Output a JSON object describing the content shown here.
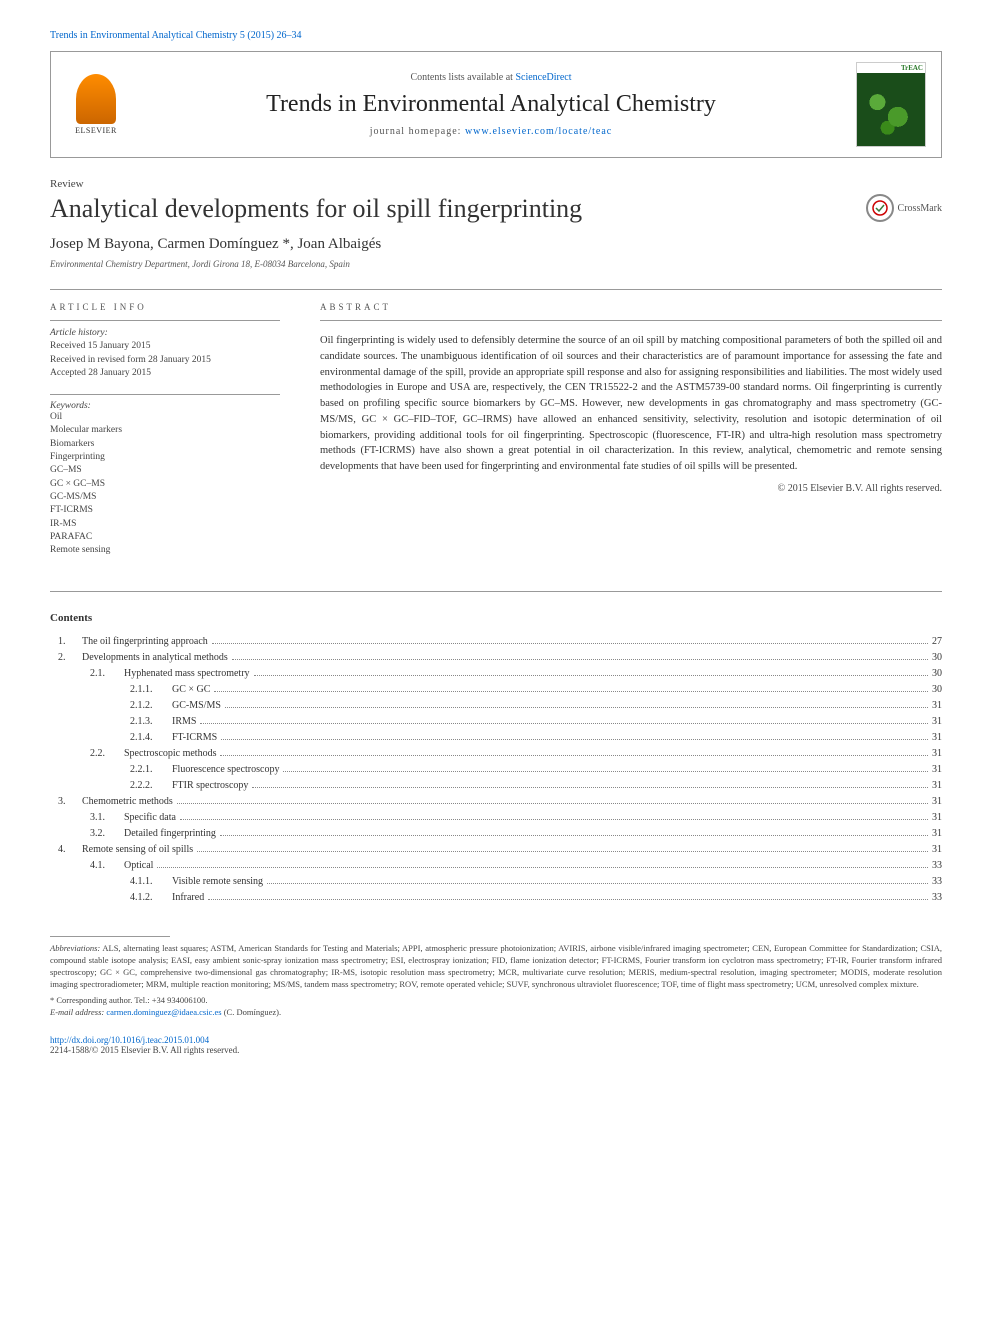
{
  "topLink": {
    "journal": "Trends in Environmental Analytical Chemistry",
    "volume": "5 (2015) 26–34"
  },
  "header": {
    "contentsPrefix": "Contents lists available at",
    "contentsLink": "ScienceDirect",
    "journalName": "Trends in Environmental Analytical Chemistry",
    "homepagePrefix": "journal homepage:",
    "homepageUrl": "www.elsevier.com/locate/teac",
    "elsevier": "ELSEVIER",
    "coverLabel": "TrEAC"
  },
  "article": {
    "type": "Review",
    "title": "Analytical developments for oil spill fingerprinting",
    "crossmark": "CrossMark",
    "authors": "Josep M Bayona, Carmen Domínguez *, Joan Albaigés",
    "affiliation": "Environmental Chemistry Department, Jordi Girona 18, E-08034 Barcelona, Spain"
  },
  "articleInfo": {
    "label": "ARTICLE INFO",
    "historyLabel": "Article history:",
    "received": "Received 15 January 2015",
    "revisedReceived": "Received in revised form 28 January 2015",
    "accepted": "Accepted 28 January 2015",
    "keywordsLabel": "Keywords:",
    "keywords": [
      "Oil",
      "Molecular markers",
      "Biomarkers",
      "Fingerprinting",
      "GC–MS",
      "GC × GC–MS",
      "GC-MS/MS",
      "FT-ICRMS",
      "IR-MS",
      "PARAFAC",
      "Remote sensing"
    ]
  },
  "abstract": {
    "label": "ABSTRACT",
    "text": "Oil fingerprinting is widely used to defensibly determine the source of an oil spill by matching compositional parameters of both the spilled oil and candidate sources. The unambiguous identification of oil sources and their characteristics are of paramount importance for assessing the fate and environmental damage of the spill, provide an appropriate spill response and also for assigning responsibilities and liabilities. The most widely used methodologies in Europe and USA are, respectively, the CEN TR15522-2 and the ASTM5739-00 standard norms. Oil fingerprinting is currently based on profiling specific source biomarkers by GC–MS. However, new developments in gas chromatography and mass spectrometry (GC-MS/MS, GC × GC–FID–TOF, GC–IRMS) have allowed an enhanced sensitivity, selectivity, resolution and isotopic determination of oil biomarkers, providing additional tools for oil fingerprinting. Spectroscopic (fluorescence, FT-IR) and ultra-high resolution mass spectrometry methods (FT-ICRMS) have also shown a great potential in oil characterization. In this review, analytical, chemometric and remote sensing developments that have been used for fingerprinting and environmental fate studies of oil spills will be presented.",
    "copyright": "© 2015 Elsevier B.V. All rights reserved."
  },
  "contentsLabel": "Contents",
  "toc": [
    {
      "num": "1.",
      "level": 1,
      "title": "The oil fingerprinting approach",
      "page": "27"
    },
    {
      "num": "2.",
      "level": 1,
      "title": "Developments in analytical methods",
      "page": "30"
    },
    {
      "num": "2.1.",
      "level": 2,
      "title": "Hyphenated mass spectrometry",
      "page": "30"
    },
    {
      "num": "2.1.1.",
      "level": 3,
      "title": "GC × GC",
      "page": "30"
    },
    {
      "num": "2.1.2.",
      "level": 3,
      "title": "GC-MS/MS",
      "page": "31"
    },
    {
      "num": "2.1.3.",
      "level": 3,
      "title": "IRMS",
      "page": "31"
    },
    {
      "num": "2.1.4.",
      "level": 3,
      "title": "FT-ICRMS",
      "page": "31"
    },
    {
      "num": "2.2.",
      "level": 2,
      "title": "Spectroscopic methods",
      "page": "31"
    },
    {
      "num": "2.2.1.",
      "level": 3,
      "title": "Fluorescence spectroscopy",
      "page": "31"
    },
    {
      "num": "2.2.2.",
      "level": 3,
      "title": "FTIR spectroscopy",
      "page": "31"
    },
    {
      "num": "3.",
      "level": 1,
      "title": "Chemometric methods",
      "page": "31"
    },
    {
      "num": "3.1.",
      "level": 2,
      "title": "Specific data",
      "page": "31"
    },
    {
      "num": "3.2.",
      "level": 2,
      "title": "Detailed fingerprinting",
      "page": "31"
    },
    {
      "num": "4.",
      "level": 1,
      "title": "Remote sensing of oil spills",
      "page": "31"
    },
    {
      "num": "4.1.",
      "level": 2,
      "title": "Optical",
      "page": "33"
    },
    {
      "num": "4.1.1.",
      "level": 3,
      "title": "Visible remote sensing",
      "page": "33"
    },
    {
      "num": "4.1.2.",
      "level": 3,
      "title": "Infrared",
      "page": "33"
    }
  ],
  "footnote": {
    "abbrevLabel": "Abbreviations:",
    "abbrevText": "ALS, alternating least squares; ASTM, American Standards for Testing and Materials; APPI, atmospheric pressure photoionization; AVIRIS, airbone visible/infrared imaging spectrometer; CEN, European Committee for Standardization; CSIA, compound stable isotope analysis; EASI, easy ambient sonic-spray ionization mass spectrometry; ESI, electrospray ionization; FID, flame ionization detector; FT-ICRMS, Fourier transform ion cyclotron mass spectrometry; FT-IR, Fourier transform infrared spectroscopy; GC × GC, comprehensive two-dimensional gas chromatography; IR-MS, isotopic resolution mass spectrometry; MCR, multivariate curve resolution; MERIS, medium-spectral resolution, imaging spectrometer; MODIS, moderate resolution imaging spectroradiometer; MRM, multiple reaction monitoring; MS/MS, tandem mass spectrometry; ROV, remote operated vehicle; SUVF, synchronous ultraviolet fluorescence; TOF, time of flight mass spectrometry; UCM, unresolved complex mixture.",
    "corresponding": "* Corresponding author. Tel.: +34 934006100.",
    "emailLabel": "E-mail address:",
    "email": "carmen.dominguez@idaea.csic.es",
    "emailSuffix": "(C. Domínguez)."
  },
  "doi": {
    "url": "http://dx.doi.org/10.1016/j.teac.2015.01.004",
    "issn": "2214-1588/© 2015 Elsevier B.V. All rights reserved."
  }
}
